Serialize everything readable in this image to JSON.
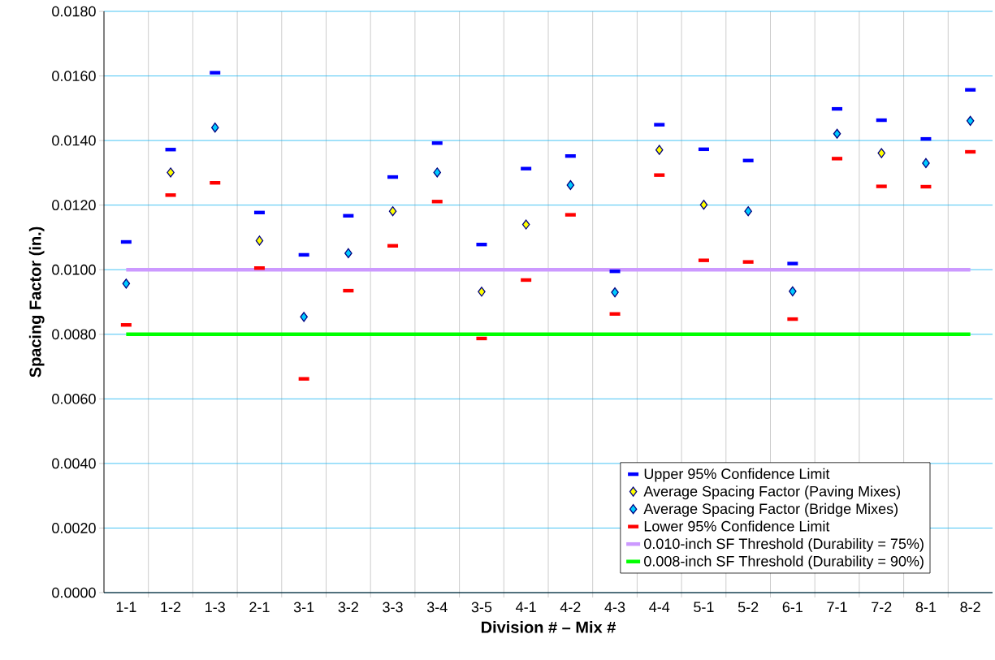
{
  "chart_data": {
    "type": "scatter",
    "xlabel": "Division # – Mix #",
    "ylabel": "Spacing Factor (in.)",
    "categories": [
      "1-1",
      "1-2",
      "1-3",
      "2-1",
      "3-1",
      "3-2",
      "3-3",
      "3-4",
      "3-5",
      "4-1",
      "4-2",
      "4-3",
      "4-4",
      "5-1",
      "5-2",
      "6-1",
      "7-1",
      "7-2",
      "8-1",
      "8-2"
    ],
    "series": [
      {
        "name": "Upper 95% Confidence Limit",
        "color": "#0000ff",
        "marker": "square",
        "values": [
          0.01086,
          0.01372,
          0.0161,
          0.01177,
          0.01046,
          0.01167,
          0.01287,
          0.01392,
          0.01078,
          0.01313,
          0.01352,
          0.00995,
          0.01449,
          0.01373,
          0.01338,
          0.01019,
          0.01498,
          0.01463,
          0.01405,
          0.01557
        ]
      },
      {
        "name": "Average Spacing Factor (Paving Mixes)",
        "color": "#ffff00",
        "marker": "diamond",
        "values": [
          null,
          0.01301,
          null,
          0.0109,
          null,
          null,
          0.01181,
          null,
          0.00932,
          0.0114,
          null,
          null,
          0.01371,
          0.01201,
          null,
          null,
          null,
          0.01361,
          null,
          null
        ]
      },
      {
        "name": "Average Spacing Factor (Bridge Mixes)",
        "color": "#00ccff",
        "marker": "diamond",
        "values": [
          0.00957,
          null,
          0.0144,
          null,
          0.00854,
          0.01051,
          null,
          0.01301,
          null,
          null,
          0.01262,
          0.0093,
          null,
          null,
          0.01181,
          0.00933,
          0.01421,
          null,
          0.0133,
          0.01461
        ]
      },
      {
        "name": "Lower 95% Confidence Limit",
        "color": "#ff0000",
        "marker": "square",
        "values": [
          0.00829,
          0.01231,
          0.01269,
          0.01005,
          0.00662,
          0.00935,
          0.01074,
          0.01211,
          0.00787,
          0.00968,
          0.0117,
          0.00863,
          0.01293,
          0.01029,
          0.01024,
          0.00847,
          0.01344,
          0.01258,
          0.01257,
          0.01365
        ]
      }
    ],
    "ref_lines": [
      {
        "axis": "y",
        "value": 0.01,
        "label": "0.010-inch SF Threshold (Durability = 75%)",
        "color": "#cc99ff"
      },
      {
        "axis": "y",
        "value": 0.008,
        "label": "0.008-inch SF Threshold (Durability = 90%)",
        "color": "#00ff00"
      }
    ],
    "ylim": [
      0,
      0.018
    ],
    "yticks": [
      {
        "value": 0,
        "label": "0.0000"
      },
      {
        "value": 0.002,
        "label": "0.0020"
      },
      {
        "value": 0.004,
        "label": "0.0040"
      },
      {
        "value": 0.006,
        "label": "0.0060"
      },
      {
        "value": 0.008,
        "label": "0.0080"
      },
      {
        "value": 0.01,
        "label": "0.0100"
      },
      {
        "value": 0.012,
        "label": "0.0120"
      },
      {
        "value": 0.014,
        "label": "0.0140"
      },
      {
        "value": 0.016,
        "label": "0.0160"
      },
      {
        "value": 0.018,
        "label": "0.0180"
      }
    ],
    "grid": true,
    "legend": "bottom right"
  }
}
